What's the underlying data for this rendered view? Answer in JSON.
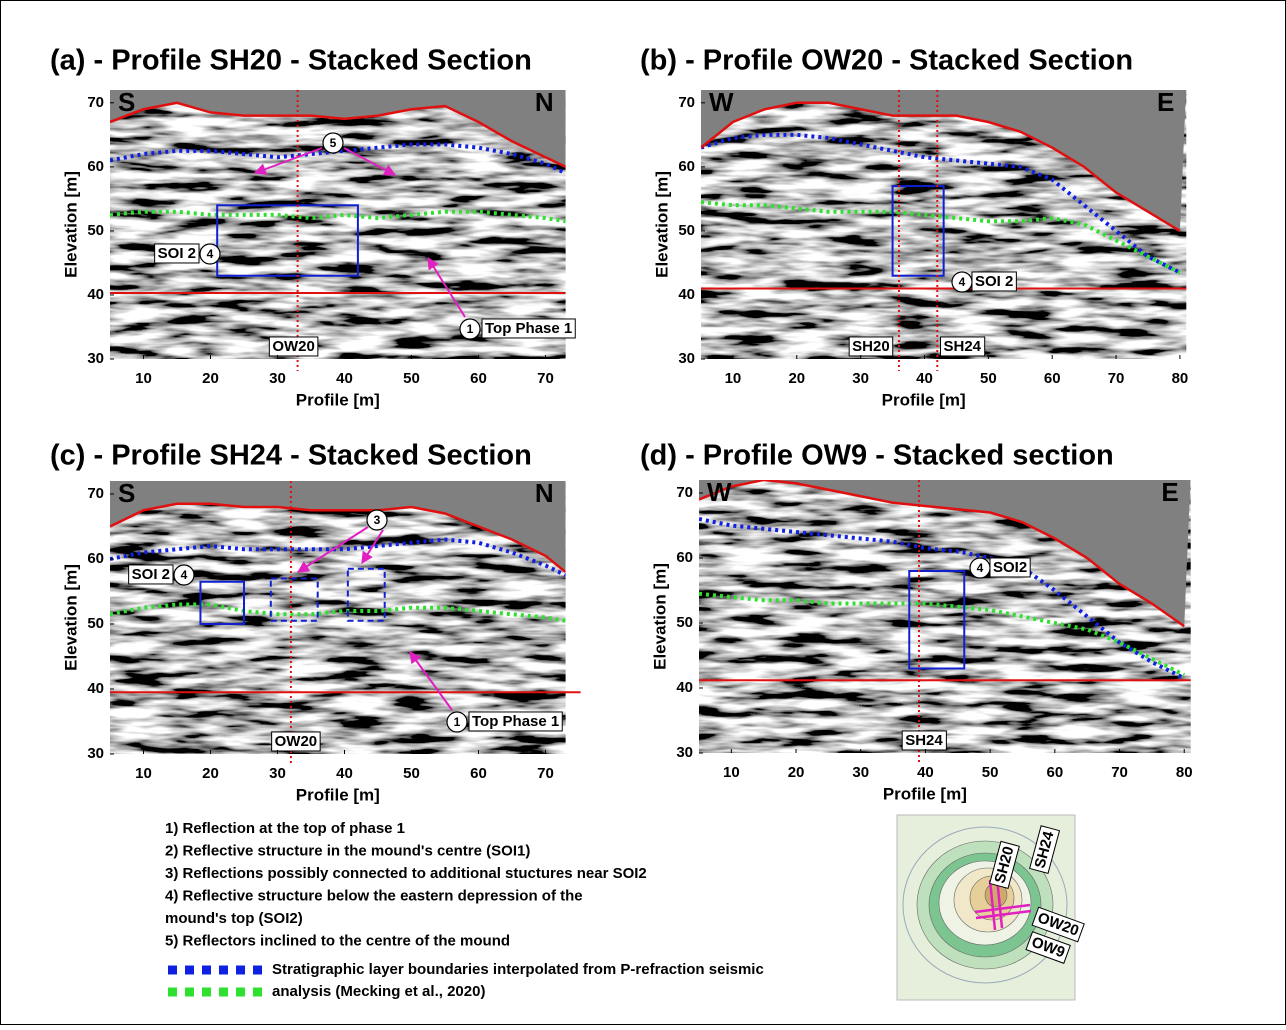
{
  "panels": [
    {
      "title": "(a) - Profile SH20 - Stacked Section",
      "dir_left": "S",
      "dir_right": "N",
      "xlabel": "Profile [m]",
      "ylabel": "Elevation [m]",
      "xlim": [
        5,
        73
      ],
      "ylim": [
        30,
        72
      ],
      "xticks": [
        10,
        20,
        30,
        40,
        50,
        60,
        70
      ],
      "yticks": [
        30,
        40,
        50,
        60,
        70
      ],
      "x": [
        5,
        10,
        15,
        20,
        25,
        30,
        35,
        40,
        45,
        50,
        55,
        60,
        65,
        70,
        73
      ],
      "surface": [
        67,
        69,
        70,
        68.5,
        68,
        68,
        68,
        67.5,
        68,
        69,
        69.5,
        67,
        64,
        61.5,
        60
      ],
      "blue": [
        61,
        62,
        62.5,
        62.5,
        62,
        61.5,
        62,
        62.5,
        63,
        63.5,
        63.5,
        63,
        62,
        60.5,
        59
      ],
      "green": [
        52.5,
        53,
        53,
        52.5,
        52.5,
        52.5,
        52,
        52.5,
        52,
        52.5,
        53,
        53,
        52.5,
        52,
        51.5
      ],
      "phase_line": 40.3,
      "profiles": [
        {
          "x": 33,
          "label": "OW20"
        }
      ],
      "annotations": [
        {
          "number": 5
        },
        {
          "number": 4,
          "label": "SOI 2"
        },
        {
          "number": 1,
          "label": "Top Phase 1"
        }
      ]
    },
    {
      "title": "(b) - Profile OW20 - Stacked Section",
      "dir_left": "W",
      "dir_right": "E",
      "xlabel": "Profile [m]",
      "ylabel": "Elevation [m]",
      "xlim": [
        5,
        81
      ],
      "ylim": [
        30,
        72
      ],
      "xticks": [
        10,
        20,
        30,
        40,
        50,
        60,
        70,
        80
      ],
      "yticks": [
        30,
        40,
        50,
        60,
        70
      ],
      "x": [
        5,
        10,
        15,
        20,
        25,
        30,
        35,
        40,
        45,
        50,
        55,
        60,
        65,
        70,
        75,
        80
      ],
      "surface": [
        63,
        67,
        69,
        70,
        70,
        69,
        68,
        68,
        68,
        67,
        65.5,
        63,
        60,
        56,
        53,
        50
      ],
      "blue": [
        63,
        64.5,
        65,
        65,
        64.5,
        63.5,
        62.5,
        61.5,
        61,
        60.5,
        60,
        58,
        54,
        50,
        46,
        43.5
      ],
      "green": [
        54.5,
        54,
        54,
        53.5,
        53,
        53,
        53,
        52.5,
        52,
        51.5,
        51.5,
        52,
        51,
        48.5,
        46,
        43.5
      ],
      "phase_line": 41,
      "profiles": [
        {
          "x": 36,
          "label": "SH20"
        },
        {
          "x": 42,
          "label": "SH24"
        }
      ],
      "annotations": [
        {
          "number": 4,
          "label": "SOI 2"
        }
      ]
    },
    {
      "title": "(c) - Profile SH24 - Stacked Section",
      "dir_left": "S",
      "dir_right": "N",
      "xlabel": "Profile [m]",
      "ylabel": "Elevation [m]",
      "xlim": [
        5,
        73
      ],
      "ylim": [
        30,
        72
      ],
      "xticks": [
        10,
        20,
        30,
        40,
        50,
        60,
        70
      ],
      "yticks": [
        30,
        40,
        50,
        60,
        70
      ],
      "x": [
        5,
        10,
        15,
        20,
        25,
        30,
        35,
        40,
        45,
        50,
        55,
        60,
        65,
        70,
        73
      ],
      "surface": [
        65,
        67.5,
        68.5,
        68.5,
        68,
        68,
        67.5,
        67.5,
        67.5,
        68,
        67,
        65,
        63,
        60.5,
        58
      ],
      "blue": [
        60,
        61,
        61.5,
        62,
        61.5,
        61.5,
        61.5,
        61.5,
        62,
        62.5,
        63,
        62.5,
        61,
        59,
        57.5
      ],
      "green": [
        51.5,
        52.5,
        53,
        53,
        52,
        51.5,
        51.5,
        52,
        52,
        52.5,
        52.5,
        52,
        51.5,
        51,
        50.5
      ],
      "phase_line": 39.5,
      "profiles": [
        {
          "x": 32,
          "label": "OW20"
        }
      ],
      "annotations": [
        {
          "number": 3
        },
        {
          "number": 4,
          "label": "SOI 2"
        },
        {
          "number": 1,
          "label": "Top Phase 1"
        }
      ]
    },
    {
      "title": "(d) - Profile OW9 - Stacked section",
      "dir_left": "W",
      "dir_right": "E",
      "xlabel": "Profile [m]",
      "ylabel": "Elevation [m]",
      "xlim": [
        5,
        81
      ],
      "ylim": [
        30,
        72
      ],
      "xticks": [
        10,
        20,
        30,
        40,
        50,
        60,
        70,
        80
      ],
      "yticks": [
        30,
        40,
        50,
        60,
        70
      ],
      "x": [
        5,
        10,
        15,
        20,
        25,
        30,
        35,
        40,
        45,
        50,
        55,
        60,
        65,
        70,
        75,
        80
      ],
      "surface": [
        69,
        71,
        72,
        71.5,
        70.5,
        69.5,
        68.5,
        68,
        67.5,
        67,
        65.5,
        63,
        60,
        56,
        53,
        49.5
      ],
      "blue": [
        66,
        65,
        64.5,
        64,
        63.5,
        63,
        62.5,
        61.5,
        61,
        60,
        58.5,
        55,
        51,
        47,
        44,
        41.5
      ],
      "green": [
        54.5,
        54,
        53.5,
        53.5,
        53,
        53,
        53,
        53,
        52.5,
        52,
        51,
        50,
        49,
        47,
        44.5,
        42
      ],
      "phase_line": 41.2,
      "profiles": [
        {
          "x": 39,
          "label": "SH24"
        }
      ],
      "annotations": [
        {
          "number": 4,
          "label": "SOI2"
        }
      ]
    }
  ],
  "legend": {
    "items": [
      "1) Reflection at the top of phase 1",
      "2) Reflective structure in the mound's centre (SOI1)",
      "3) Reflections possibly connected to additional stuctures near SOI2",
      "4) Reflective structure below the eastern depression of the",
      "mound's top (SOI2)",
      "5) Reflectors inclined to the centre of the mound"
    ],
    "boundaries": [
      "Stratigraphic layer boundaries interpolated from P-refraction seismic",
      "analysis (Mecking et al., 2020)"
    ]
  },
  "map": {
    "labels": [
      "SH20",
      "SH24",
      "OW20",
      "OW9"
    ]
  }
}
